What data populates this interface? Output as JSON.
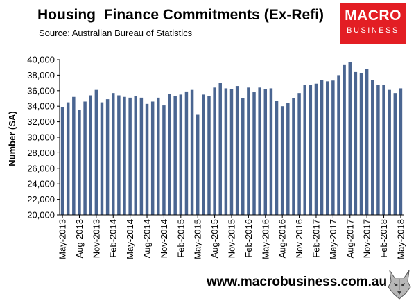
{
  "chart_data": {
    "type": "bar",
    "title": "Housing  Finance Commitments (Ex-Refi)",
    "subtitle": "Source: Australian Bureau of Statistics",
    "ylabel": "Number (SA)",
    "xlabel": "",
    "ylim": [
      20000,
      40000
    ],
    "yticks": [
      20000,
      22000,
      24000,
      26000,
      28000,
      30000,
      32000,
      34000,
      36000,
      38000,
      40000
    ],
    "ytick_labels": [
      "20,000",
      "22,000",
      "24,000",
      "26,000",
      "28,000",
      "30,000",
      "32,000",
      "34,000",
      "36,000",
      "38,000",
      "40,000"
    ],
    "xtick_labels": [
      "May-2013",
      "Aug-2013",
      "Nov-2013",
      "Feb-2014",
      "May-2014",
      "Aug-2014",
      "Nov-2014",
      "Feb-2015",
      "May-2015",
      "Aug-2015",
      "Nov-2015",
      "Feb-2016",
      "May-2016",
      "Aug-2016",
      "Nov-2016",
      "Feb-2017",
      "May-2017",
      "Aug-2017",
      "Nov-2017",
      "Feb-2018",
      "May-2018"
    ],
    "grid": false,
    "bar_color": "#4a6591",
    "categories": [
      "May-2013",
      "Jun-2013",
      "Jul-2013",
      "Aug-2013",
      "Sep-2013",
      "Oct-2013",
      "Nov-2013",
      "Dec-2013",
      "Jan-2014",
      "Feb-2014",
      "Mar-2014",
      "Apr-2014",
      "May-2014",
      "Jun-2014",
      "Jul-2014",
      "Aug-2014",
      "Sep-2014",
      "Oct-2014",
      "Nov-2014",
      "Dec-2014",
      "Jan-2015",
      "Feb-2015",
      "Mar-2015",
      "Apr-2015",
      "May-2015",
      "Jun-2015",
      "Jul-2015",
      "Aug-2015",
      "Sep-2015",
      "Oct-2015",
      "Nov-2015",
      "Dec-2015",
      "Jan-2016",
      "Feb-2016",
      "Mar-2016",
      "Apr-2016",
      "May-2016",
      "Jun-2016",
      "Jul-2016",
      "Aug-2016",
      "Sep-2016",
      "Oct-2016",
      "Nov-2016",
      "Dec-2016",
      "Jan-2017",
      "Feb-2017",
      "Mar-2017",
      "Apr-2017",
      "May-2017",
      "Jun-2017",
      "Jul-2017",
      "Aug-2017",
      "Sep-2017",
      "Oct-2017",
      "Nov-2017",
      "Dec-2017",
      "Jan-2018",
      "Feb-2018",
      "Mar-2018",
      "Apr-2018",
      "May-2018"
    ],
    "values": [
      33900,
      34500,
      35200,
      33500,
      34600,
      35400,
      36100,
      34500,
      34900,
      35700,
      35400,
      35200,
      35100,
      35300,
      35100,
      34300,
      34600,
      35100,
      34100,
      35600,
      35300,
      35500,
      35900,
      36100,
      32900,
      35500,
      35300,
      36400,
      37000,
      36300,
      36200,
      36600,
      35000,
      36400,
      35800,
      36400,
      36200,
      36300,
      34700,
      34000,
      34400,
      35000,
      35700,
      36700,
      36700,
      36900,
      37400,
      37200,
      37300,
      38000,
      39300,
      39700,
      38400,
      38300,
      38800,
      37400,
      36700,
      36700,
      36100,
      35700,
      36300
    ]
  },
  "footer": {
    "url": "www.macrobusiness.com.au"
  },
  "logo": {
    "line1": "MACRO",
    "line2": "BUSINESS",
    "bg_color": "#e31e24"
  },
  "icons": {
    "footer_mark": "wolf-head-icon"
  }
}
